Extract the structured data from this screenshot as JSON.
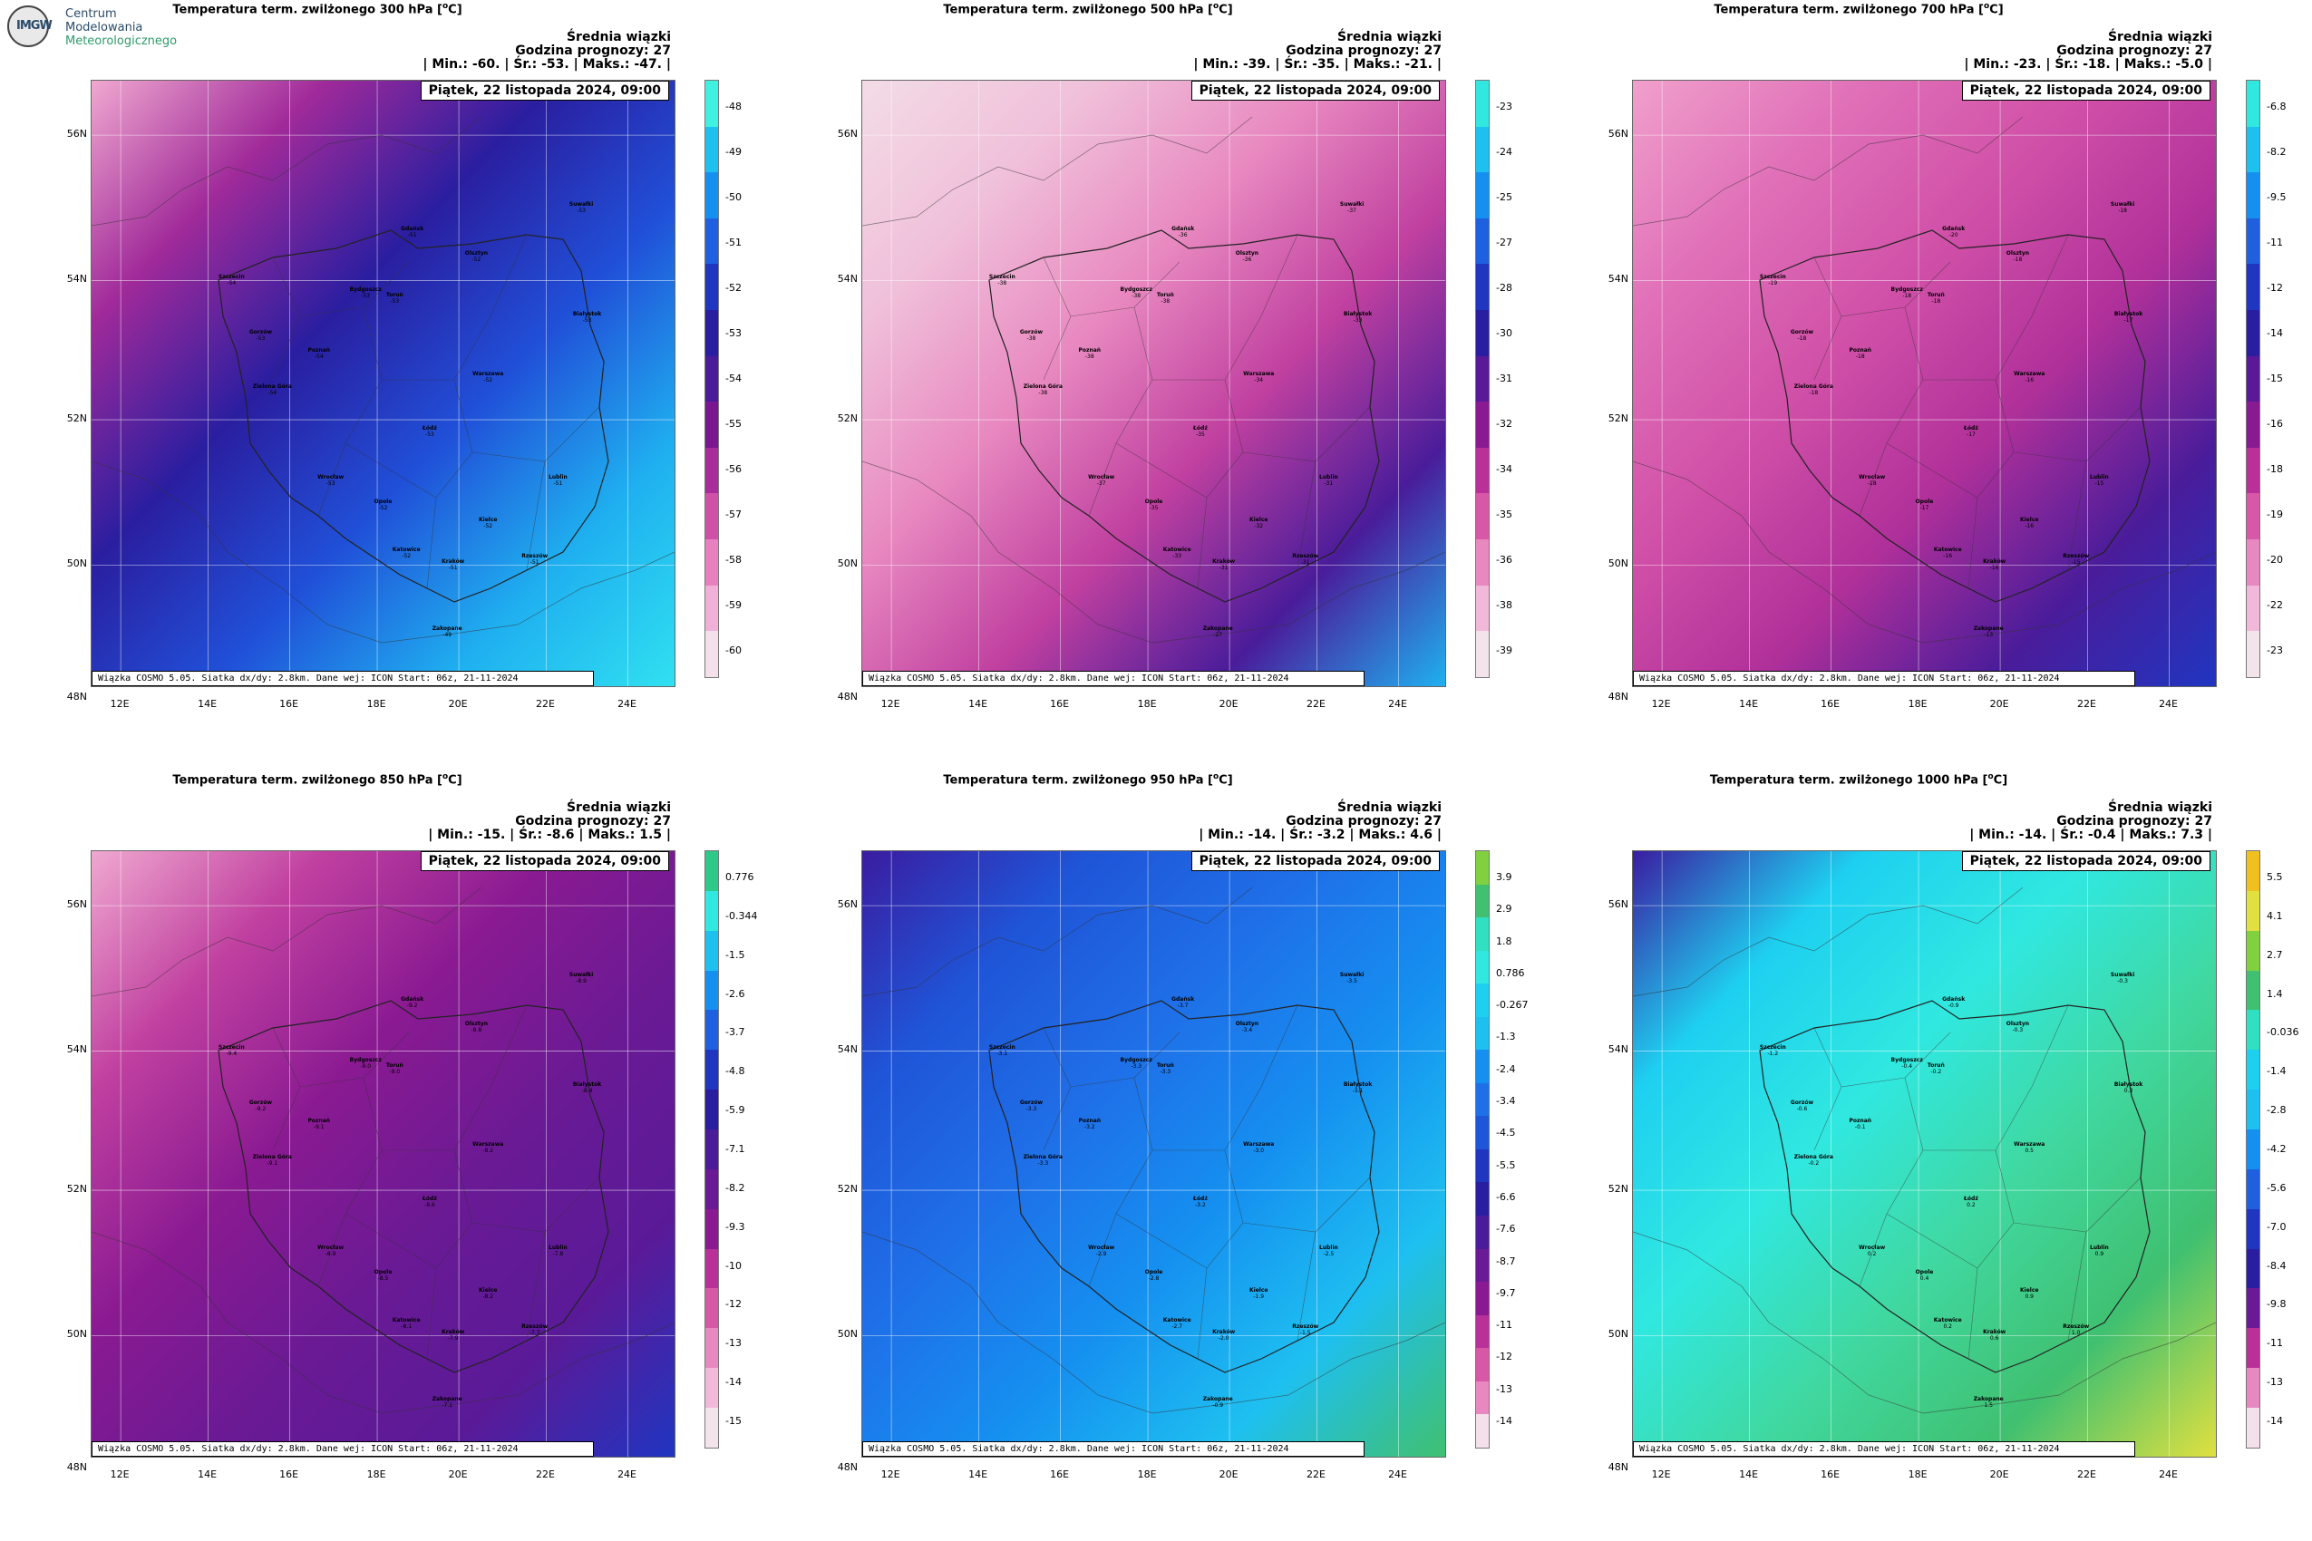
{
  "logo": {
    "line1": "Centrum",
    "line2": "Modelowania",
    "line3": "Meteorologicznego",
    "mark": "IMGW"
  },
  "common": {
    "avg_label": "Średnia wiązki",
    "forecast_hour": "Godzina prognozy: 27",
    "date": "Piątek, 22 listopada 2024, 09:00",
    "footer": "Wiązka COSMO 5.05. Siatka dx/dy: 2.8km. Dane wej: ICON Start: 06z, 21-11-2024",
    "lat_labels": [
      "56N",
      "54N",
      "52N",
      "50N",
      "48N"
    ],
    "lon_labels": [
      "12E",
      "14E",
      "16E",
      "18E",
      "20E",
      "22E",
      "24E"
    ]
  },
  "colors": {
    "background": "#ffffff",
    "title_text": "#000000",
    "logo_blue": "#2a4c6a",
    "logo_green": "#2f9a6a"
  },
  "cities": [
    "Gdańsk",
    "Suwałki",
    "Olsztyn",
    "Szczecin",
    "Bydgoszcz",
    "Toruń",
    "Białystok",
    "Gorzów",
    "Poznań",
    "Zielona Góra",
    "Warszawa",
    "Łódź",
    "Wrocław",
    "Opole",
    "Lublin",
    "Kielce",
    "Katowice",
    "Kraków",
    "Rzeszów",
    "Zakopane"
  ],
  "panels": [
    {
      "title": "Temperatura term. zwilżonego 300 hPa [",
      "unit_sup": "o",
      "unit_tail": "C]",
      "stats": "| Min.: -60. | Śr.: -53. | Maks.: -47. |",
      "colorbar_labels": [
        "-48",
        "-49",
        "-50",
        "-51",
        "-52",
        "-53",
        "-54",
        "-55",
        "-56",
        "-57",
        "-58",
        "-59",
        "-60"
      ],
      "colorbar_colors": [
        "#40f0e0",
        "#1ec0f0",
        "#1590f0",
        "#1f60e0",
        "#2035c0",
        "#2a1ea0",
        "#4a1c9a",
        "#7a1690",
        "#a82c9a",
        "#d050a8",
        "#e880c0",
        "#f0b0d8",
        "#f3e0ea"
      ],
      "city_values": [
        "-51",
        "-53",
        "-52",
        "-54",
        "-53",
        "-53",
        "-53",
        "-53",
        "-54",
        "-54",
        "-52",
        "-53",
        "-53",
        "-52",
        "-51",
        "-52",
        "-52",
        "-51",
        "-51",
        "-49"
      ],
      "map_gradient": [
        [
          "#f0a8d0",
          "#a02a9a",
          "#2a1ea0",
          "#2050d8",
          "#1fb0f0",
          "#30e0f0"
        ]
      ]
    },
    {
      "title": "Temperatura term. zwilżonego 500 hPa [",
      "unit_sup": "o",
      "unit_tail": "C]",
      "stats": "| Min.: -39. | Śr.: -35. | Maks.: -21. |",
      "colorbar_labels": [
        "-23",
        "-24",
        "-25",
        "-27",
        "-28",
        "-30",
        "-31",
        "-32",
        "-34",
        "-35",
        "-36",
        "-38",
        "-39"
      ],
      "colorbar_colors": [
        "#30e8e0",
        "#1ec0f0",
        "#1590f0",
        "#1f60e0",
        "#2035c0",
        "#2a1ea0",
        "#5a1a98",
        "#8a1a92",
        "#b83098",
        "#d858a8",
        "#e888c0",
        "#f2b8da",
        "#f3e4ec"
      ],
      "city_values": [
        "-36",
        "-37",
        "-36",
        "-38",
        "-38",
        "-38",
        "-33",
        "-38",
        "-38",
        "-38",
        "-34",
        "-35",
        "-37",
        "-35",
        "-31",
        "-32",
        "-33",
        "-31",
        "-31",
        "-27"
      ],
      "map_gradient": [
        [
          "#f3dce6",
          "#f0c0da",
          "#e888c0",
          "#c040a0",
          "#4a1c9a",
          "#1fb0f0"
        ]
      ]
    },
    {
      "title": "Temperatura term. zwilżonego 700 hPa [",
      "unit_sup": "o",
      "unit_tail": "C]",
      "stats": "| Min.: -23. | Śr.: -18. | Maks.: -5.0 |",
      "colorbar_labels": [
        "-6.8",
        "-8.2",
        "-9.5",
        "-11",
        "-12",
        "-14",
        "-15",
        "-16",
        "-18",
        "-19",
        "-20",
        "-22",
        "-23"
      ],
      "colorbar_colors": [
        "#30e8e0",
        "#1ec0f0",
        "#1590f0",
        "#1f60e0",
        "#2035c0",
        "#2a1ea0",
        "#5a1a98",
        "#8a1a92",
        "#b83098",
        "#d858a8",
        "#e888c0",
        "#f2b8da",
        "#f3e4ec"
      ],
      "city_values": [
        "-20",
        "-18",
        "-18",
        "-19",
        "-18",
        "-18",
        "-17",
        "-18",
        "-18",
        "-18",
        "-16",
        "-17",
        "-18",
        "-17",
        "-15",
        "-16",
        "-16",
        "-16",
        "-15",
        "-13"
      ],
      "map_gradient": [
        [
          "#f0a0cc",
          "#e070b8",
          "#d050a8",
          "#b0309a",
          "#4a1c9a",
          "#2035c0"
        ]
      ]
    },
    {
      "title": "Temperatura term. zwilżonego 850 hPa [",
      "unit_sup": "o",
      "unit_tail": "C]",
      "stats": "| Min.: -15. | Śr.: -8.6 | Maks.: 1.5 |",
      "colorbar_labels": [
        "0.776",
        "-0.344",
        "-1.5",
        "-2.6",
        "-3.7",
        "-4.8",
        "-5.9",
        "-7.1",
        "-8.2",
        "-9.3",
        "-10",
        "-12",
        "-13",
        "-14",
        "-15"
      ],
      "colorbar_colors": [
        "#2ec888",
        "#30e8e0",
        "#1ec0f0",
        "#1590f0",
        "#1f60e0",
        "#2035c0",
        "#2a1ea0",
        "#4a1c9a",
        "#6a1a94",
        "#8a1a92",
        "#b83098",
        "#d858a8",
        "#e888c0",
        "#f2b8da",
        "#f3e4ec"
      ],
      "city_values": [
        "-9.2",
        "-8.9",
        "-8.8",
        "-9.4",
        "-9.0",
        "-9.0",
        "-8.4",
        "-9.2",
        "-9.1",
        "-9.1",
        "-8.2",
        "-8.6",
        "-8.9",
        "-8.5",
        "-7.8",
        "-8.2",
        "-8.1",
        "-7.9",
        "-7.7",
        "-7.1"
      ],
      "map_gradient": [
        [
          "#f0a8d0",
          "#c040a0",
          "#8a1a92",
          "#6a1a94",
          "#5a1a98",
          "#2035c0"
        ]
      ]
    },
    {
      "title": "Temperatura term. zwilżonego 950 hPa [",
      "unit_sup": "o",
      "unit_tail": "C]",
      "stats": "| Min.: -14. | Śr.: -3.2 | Maks.: 4.6 |",
      "colorbar_labels": [
        "3.9",
        "2.9",
        "1.8",
        "0.786",
        "-0.267",
        "-1.3",
        "-2.4",
        "-3.4",
        "-4.5",
        "-5.5",
        "-6.6",
        "-7.6",
        "-8.7",
        "-9.7",
        "-11",
        "-12",
        "-13",
        "-14"
      ],
      "colorbar_colors": [
        "#80d040",
        "#40c070",
        "#30e0c0",
        "#30e8e0",
        "#1ed0f0",
        "#1ec0f0",
        "#1590f0",
        "#1f70e8",
        "#1f55d8",
        "#2035c0",
        "#2a1ea0",
        "#4a1c9a",
        "#6a1a94",
        "#8a1a92",
        "#b83098",
        "#d858a8",
        "#e888c0",
        "#f3e0ea"
      ],
      "city_values": [
        "-3.7",
        "-3.5",
        "-3.4",
        "-3.1",
        "-3.3",
        "-3.3",
        "-3.1",
        "-3.3",
        "-3.2",
        "-3.3",
        "-3.0",
        "-3.2",
        "-2.9",
        "-2.8",
        "-2.5",
        "-1.9",
        "-2.7",
        "-2.0",
        "-1.5",
        "-0.9"
      ],
      "map_gradient": [
        [
          "#3a1ca0",
          "#1f55d8",
          "#1f70e8",
          "#1590f0",
          "#1ec0f0",
          "#40c070"
        ]
      ]
    },
    {
      "title": "Temperatura term. zwilżonego 1000 hPa [",
      "unit_sup": "o",
      "unit_tail": "C]",
      "stats": "| Min.: -14. | Śr.: -0.4 | Maks.: 7.3 |",
      "colorbar_labels": [
        "5.5",
        "4.1",
        "2.7",
        "1.4",
        "-0.036",
        "-1.4",
        "-2.8",
        "-4.2",
        "-5.6",
        "-7.0",
        "-8.4",
        "-9.8",
        "-11",
        "-13",
        "-14"
      ],
      "colorbar_colors": [
        "#f0c020",
        "#e0e040",
        "#80d040",
        "#40c070",
        "#30e0c0",
        "#1ed0f0",
        "#1ec0f0",
        "#1590f0",
        "#1f60e0",
        "#2035c0",
        "#2a1ea0",
        "#6a1a94",
        "#b83098",
        "#e888c0",
        "#f3e0ea"
      ],
      "city_values": [
        "-0.9",
        "-0.3",
        "-0.3",
        "-1.2",
        "-0.4",
        "-0.2",
        "0.3",
        "-0.6",
        "-0.1",
        "-0.2",
        "0.5",
        "0.2",
        "0.2",
        "0.4",
        "0.9",
        "0.9",
        "0.2",
        "0.6",
        "1.0",
        "1.5"
      ],
      "map_gradient": [
        [
          "#3a1ca0",
          "#1ed0f0",
          "#30e8e0",
          "#40d8a0",
          "#40c070",
          "#e0e040"
        ]
      ]
    }
  ]
}
